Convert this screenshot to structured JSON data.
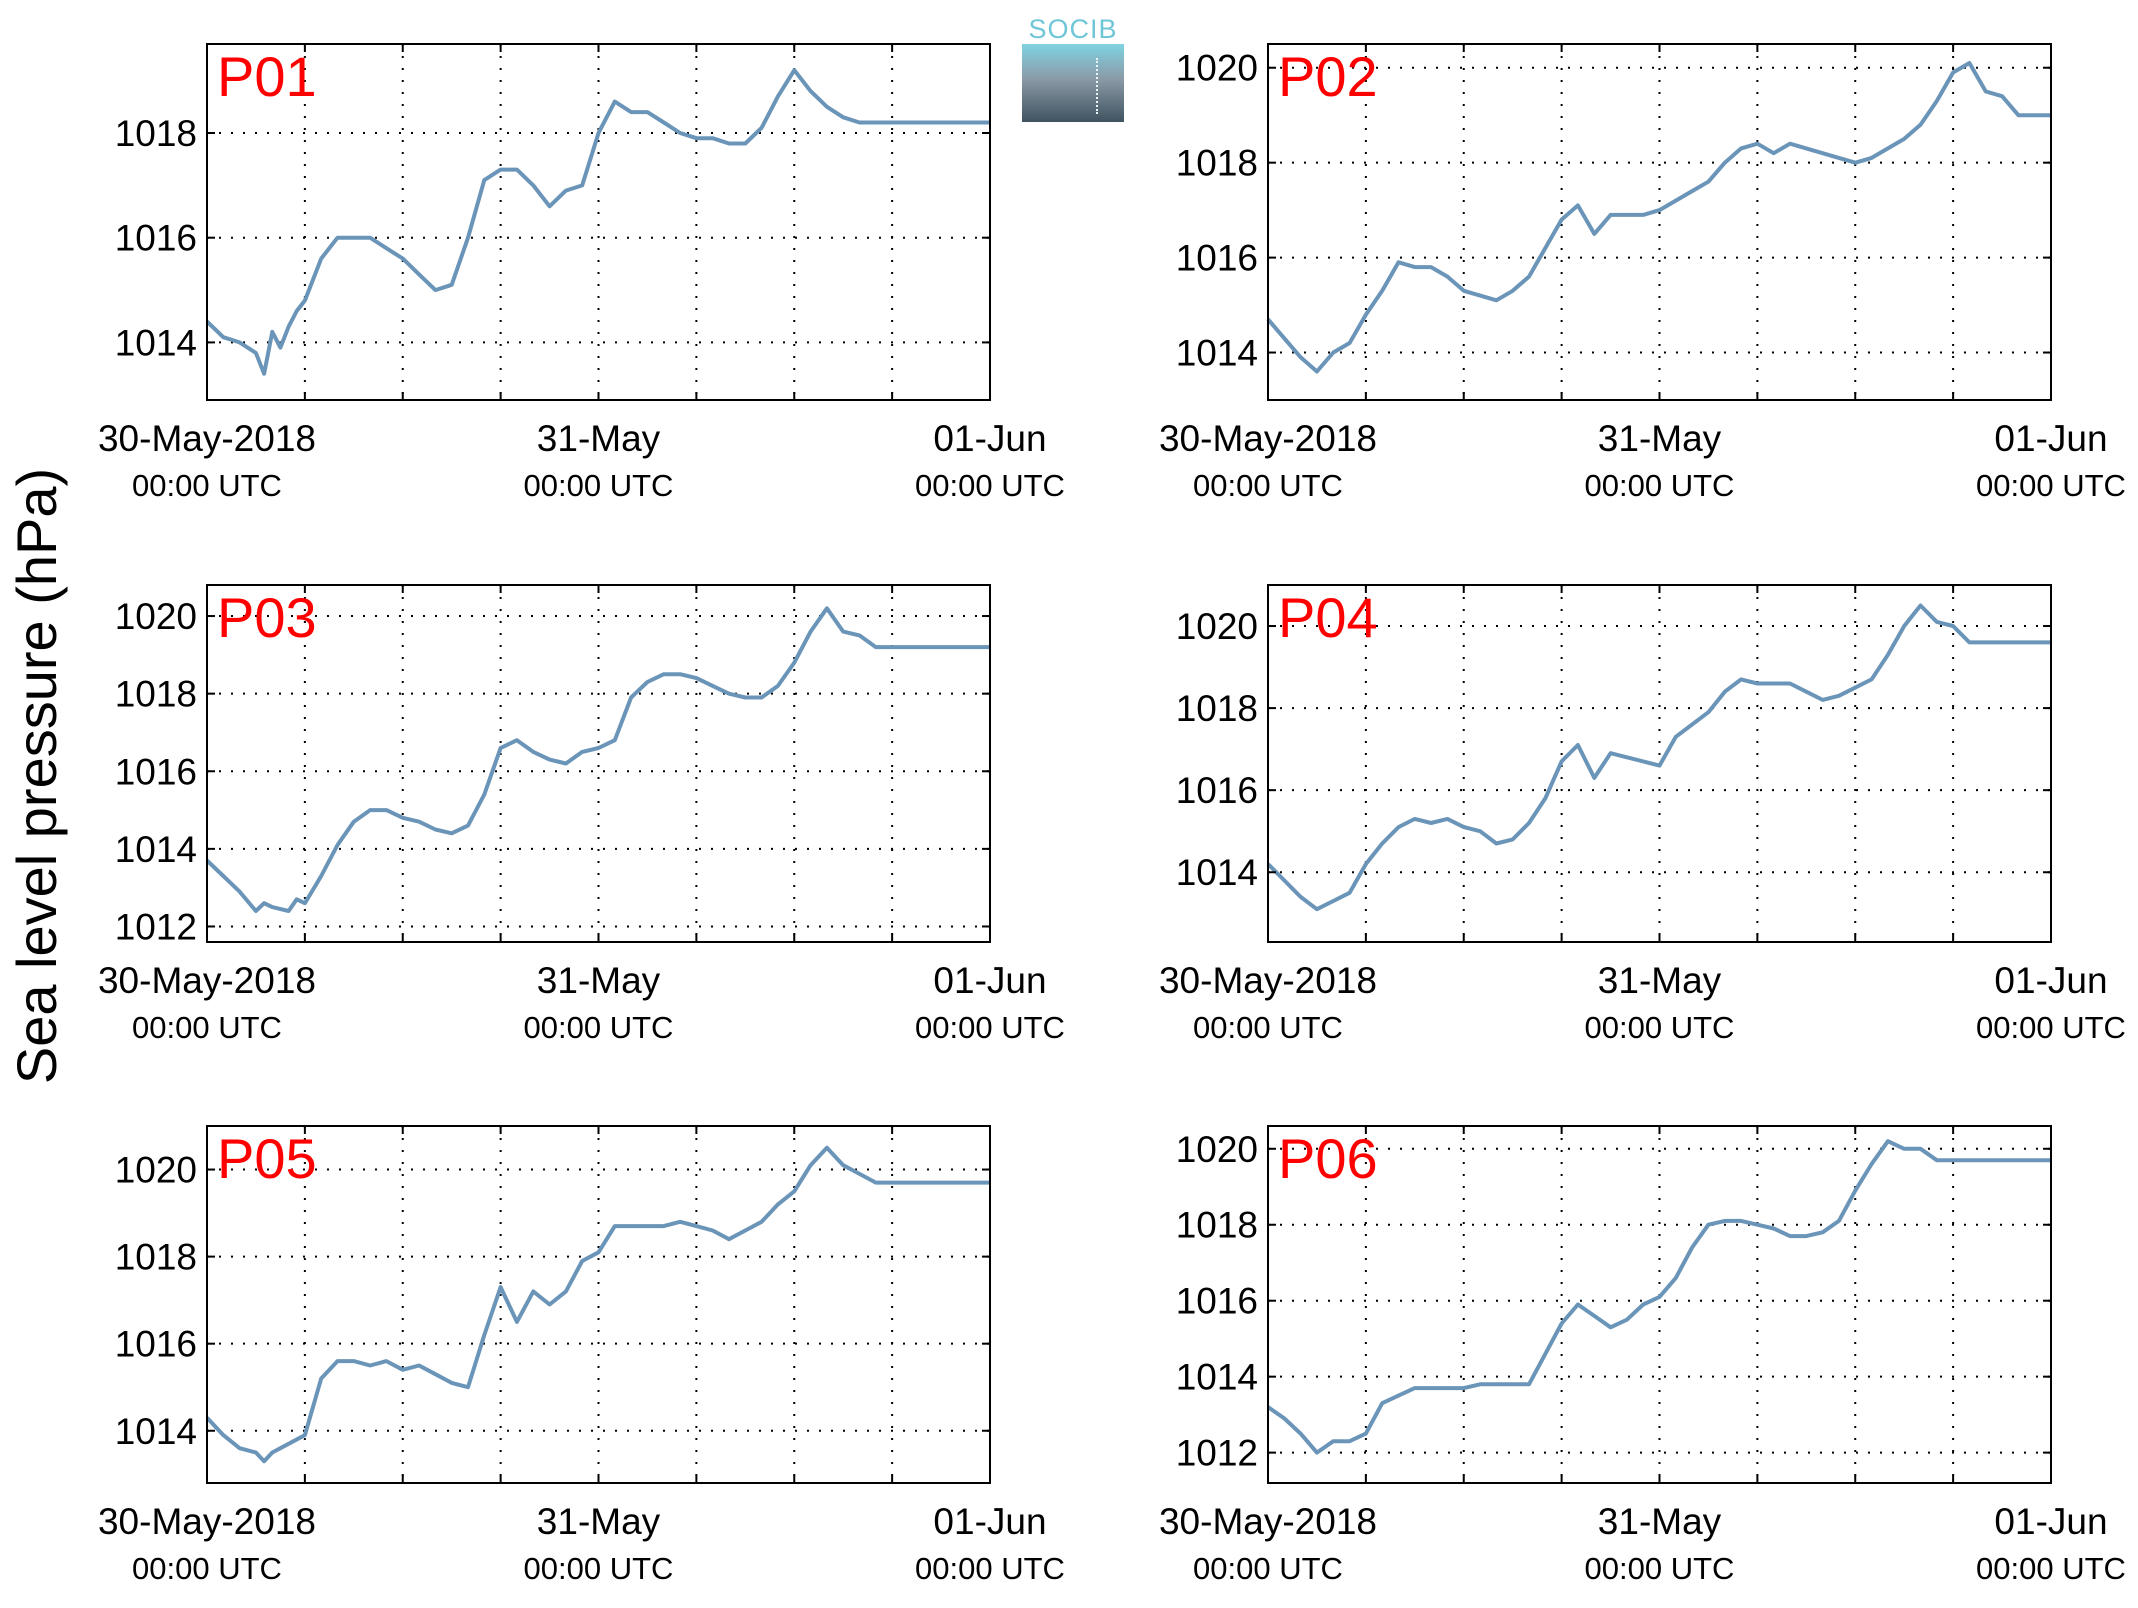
{
  "figure": {
    "ylabel": "Sea level pressure (hPa)",
    "logo_text": "SOCIB",
    "colors": {
      "line": "#6b95b8",
      "panel_label": "#ff0000",
      "axis": "#000000",
      "grid": "#000000"
    }
  },
  "chart_data": [
    {
      "type": "line",
      "title": "P01",
      "x_ticks": [
        "30-May-2018",
        "31-May",
        "01-Jun"
      ],
      "x_tick_sub": [
        "00:00 UTC",
        "00:00 UTC",
        "00:00 UTC"
      ],
      "x_range_hours": [
        0,
        48
      ],
      "ylim": [
        1012.9,
        1019.7
      ],
      "yticks": [
        1014,
        1016,
        1018
      ],
      "grid": true,
      "series": [
        {
          "x_hours": [
            0,
            1,
            2,
            3,
            3.5,
            4,
            4.5,
            5,
            5.5,
            6,
            7,
            8,
            9,
            10,
            11,
            12,
            13,
            14,
            15,
            16,
            17,
            18,
            19,
            20,
            21,
            22,
            23,
            24,
            25,
            26,
            27,
            28,
            29,
            30,
            31,
            32,
            33,
            34,
            35,
            36,
            37,
            38,
            39,
            40,
            41,
            42,
            43,
            44,
            45,
            46,
            47,
            48
          ],
          "values": [
            1014.4,
            1014.1,
            1014.0,
            1013.8,
            1013.4,
            1014.2,
            1013.9,
            1014.3,
            1014.6,
            1014.8,
            1015.6,
            1016.0,
            1016.0,
            1016.0,
            1015.8,
            1015.6,
            1015.3,
            1015.0,
            1015.1,
            1016.0,
            1017.1,
            1017.3,
            1017.3,
            1017.0,
            1016.6,
            1016.9,
            1017.0,
            1018.0,
            1018.6,
            1018.4,
            1018.4,
            1018.2,
            1018.0,
            1017.9,
            1017.9,
            1017.8,
            1017.8,
            1018.1,
            1018.7,
            1019.2,
            1018.8,
            1018.5,
            1018.3,
            1018.2,
            1018.2,
            1018.2,
            1018.2,
            1018.2,
            1018.2,
            1018.2,
            1018.2,
            1018.2
          ]
        }
      ]
    },
    {
      "type": "line",
      "title": "P02",
      "x_ticks": [
        "30-May-2018",
        "31-May",
        "01-Jun"
      ],
      "x_tick_sub": [
        "00:00 UTC",
        "00:00 UTC",
        "00:00 UTC"
      ],
      "x_range_hours": [
        0,
        48
      ],
      "ylim": [
        1013.0,
        1020.5
      ],
      "yticks": [
        1014,
        1016,
        1018,
        1020
      ],
      "grid": true,
      "series": [
        {
          "x_hours": [
            0,
            1,
            2,
            3,
            4,
            5,
            6,
            7,
            8,
            9,
            10,
            11,
            12,
            13,
            14,
            15,
            16,
            17,
            18,
            19,
            20,
            21,
            22,
            23,
            24,
            25,
            26,
            27,
            28,
            29,
            30,
            31,
            32,
            33,
            34,
            35,
            36,
            37,
            38,
            39,
            40,
            41,
            42,
            43,
            44,
            45,
            46,
            47,
            48
          ],
          "values": [
            1014.7,
            1014.3,
            1013.9,
            1013.6,
            1014.0,
            1014.2,
            1014.8,
            1015.3,
            1015.9,
            1015.8,
            1015.8,
            1015.6,
            1015.3,
            1015.2,
            1015.1,
            1015.3,
            1015.6,
            1016.2,
            1016.8,
            1017.1,
            1016.5,
            1016.9,
            1016.9,
            1016.9,
            1017.0,
            1017.2,
            1017.4,
            1017.6,
            1018.0,
            1018.3,
            1018.4,
            1018.2,
            1018.4,
            1018.3,
            1018.2,
            1018.1,
            1018.0,
            1018.1,
            1018.3,
            1018.5,
            1018.8,
            1019.3,
            1019.9,
            1020.1,
            1019.5,
            1019.4,
            1019.0,
            1019.0,
            1019.0
          ]
        }
      ]
    },
    {
      "type": "line",
      "title": "P03",
      "x_ticks": [
        "30-May-2018",
        "31-May",
        "01-Jun"
      ],
      "x_tick_sub": [
        "00:00 UTC",
        "00:00 UTC",
        "00:00 UTC"
      ],
      "x_range_hours": [
        0,
        48
      ],
      "ylim": [
        1011.6,
        1020.8
      ],
      "yticks": [
        1012,
        1014,
        1016,
        1018,
        1020
      ],
      "grid": true,
      "series": [
        {
          "x_hours": [
            0,
            1,
            2,
            3,
            3.5,
            4,
            5,
            5.5,
            6,
            7,
            8,
            9,
            10,
            11,
            12,
            13,
            14,
            15,
            16,
            17,
            18,
            19,
            20,
            21,
            22,
            23,
            24,
            25,
            26,
            27,
            28,
            29,
            30,
            31,
            32,
            33,
            34,
            35,
            36,
            37,
            38,
            39,
            40,
            41,
            42,
            43,
            44,
            45,
            46,
            47,
            48
          ],
          "values": [
            1013.7,
            1013.3,
            1012.9,
            1012.4,
            1012.6,
            1012.5,
            1012.4,
            1012.7,
            1012.6,
            1013.3,
            1014.1,
            1014.7,
            1015.0,
            1015.0,
            1014.8,
            1014.7,
            1014.5,
            1014.4,
            1014.6,
            1015.4,
            1016.6,
            1016.8,
            1016.5,
            1016.3,
            1016.2,
            1016.5,
            1016.6,
            1016.8,
            1017.9,
            1018.3,
            1018.5,
            1018.5,
            1018.4,
            1018.2,
            1018.0,
            1017.9,
            1017.9,
            1018.2,
            1018.8,
            1019.6,
            1020.2,
            1019.6,
            1019.5,
            1019.2,
            1019.2,
            1019.2,
            1019.2,
            1019.2,
            1019.2,
            1019.2,
            1019.2
          ]
        }
      ]
    },
    {
      "type": "line",
      "title": "P04",
      "x_ticks": [
        "30-May-2018",
        "31-May",
        "01-Jun"
      ],
      "x_tick_sub": [
        "00:00 UTC",
        "00:00 UTC",
        "00:00 UTC"
      ],
      "x_range_hours": [
        0,
        48
      ],
      "ylim": [
        1012.3,
        1021.0
      ],
      "yticks": [
        1014,
        1016,
        1018,
        1020
      ],
      "grid": true,
      "series": [
        {
          "x_hours": [
            0,
            1,
            2,
            3,
            4,
            5,
            6,
            7,
            8,
            9,
            10,
            11,
            12,
            13,
            14,
            15,
            16,
            17,
            18,
            19,
            20,
            21,
            22,
            23,
            24,
            25,
            26,
            27,
            28,
            29,
            30,
            31,
            32,
            33,
            34,
            35,
            36,
            37,
            38,
            39,
            40,
            41,
            42,
            43,
            44,
            45,
            46,
            47,
            48
          ],
          "values": [
            1014.2,
            1013.8,
            1013.4,
            1013.1,
            1013.3,
            1013.5,
            1014.2,
            1014.7,
            1015.1,
            1015.3,
            1015.2,
            1015.3,
            1015.1,
            1015.0,
            1014.7,
            1014.8,
            1015.2,
            1015.8,
            1016.7,
            1017.1,
            1016.3,
            1016.9,
            1016.8,
            1016.7,
            1016.6,
            1017.3,
            1017.6,
            1017.9,
            1018.4,
            1018.7,
            1018.6,
            1018.6,
            1018.6,
            1018.4,
            1018.2,
            1018.3,
            1018.5,
            1018.7,
            1019.3,
            1020.0,
            1020.5,
            1020.1,
            1020.0,
            1019.6,
            1019.6,
            1019.6,
            1019.6,
            1019.6,
            1019.6
          ]
        }
      ]
    },
    {
      "type": "line",
      "title": "P05",
      "x_ticks": [
        "30-May-2018",
        "31-May",
        "01-Jun"
      ],
      "x_tick_sub": [
        "00:00 UTC",
        "00:00 UTC",
        "00:00 UTC"
      ],
      "x_range_hours": [
        0,
        48
      ],
      "ylim": [
        1012.8,
        1021.0
      ],
      "yticks": [
        1014,
        1016,
        1018,
        1020
      ],
      "grid": true,
      "series": [
        {
          "x_hours": [
            0,
            1,
            2,
            3,
            3.5,
            4,
            5,
            6,
            7,
            8,
            9,
            10,
            11,
            12,
            13,
            14,
            15,
            16,
            17,
            18,
            19,
            20,
            21,
            22,
            23,
            24,
            25,
            26,
            27,
            28,
            29,
            30,
            31,
            32,
            33,
            34,
            35,
            36,
            37,
            38,
            39,
            40,
            41,
            42,
            43,
            44,
            45,
            46,
            47,
            48
          ],
          "values": [
            1014.3,
            1013.9,
            1013.6,
            1013.5,
            1013.3,
            1013.5,
            1013.7,
            1013.9,
            1015.2,
            1015.6,
            1015.6,
            1015.5,
            1015.6,
            1015.4,
            1015.5,
            1015.3,
            1015.1,
            1015.0,
            1016.2,
            1017.3,
            1016.5,
            1017.2,
            1016.9,
            1017.2,
            1017.9,
            1018.1,
            1018.7,
            1018.7,
            1018.7,
            1018.7,
            1018.8,
            1018.7,
            1018.6,
            1018.4,
            1018.6,
            1018.8,
            1019.2,
            1019.5,
            1020.1,
            1020.5,
            1020.1,
            1019.9,
            1019.7,
            1019.7,
            1019.7,
            1019.7,
            1019.7,
            1019.7,
            1019.7,
            1019.7
          ]
        }
      ]
    },
    {
      "type": "line",
      "title": "P06",
      "x_ticks": [
        "30-May-2018",
        "31-May",
        "01-Jun"
      ],
      "x_tick_sub": [
        "00:00 UTC",
        "00:00 UTC",
        "00:00 UTC"
      ],
      "x_range_hours": [
        0,
        48
      ],
      "ylim": [
        1011.2,
        1020.6
      ],
      "yticks": [
        1012,
        1014,
        1016,
        1018,
        1020
      ],
      "grid": true,
      "series": [
        {
          "x_hours": [
            0,
            1,
            2,
            3,
            4,
            5,
            6,
            7,
            8,
            9,
            10,
            11,
            12,
            13,
            14,
            15,
            16,
            17,
            18,
            19,
            20,
            21,
            22,
            23,
            24,
            25,
            26,
            27,
            28,
            29,
            30,
            31,
            32,
            33,
            34,
            35,
            36,
            37,
            38,
            39,
            40,
            41,
            42,
            43,
            44,
            45,
            46,
            47,
            48
          ],
          "values": [
            1013.2,
            1012.9,
            1012.5,
            1012.0,
            1012.3,
            1012.3,
            1012.5,
            1013.3,
            1013.5,
            1013.7,
            1013.7,
            1013.7,
            1013.7,
            1013.8,
            1013.8,
            1013.8,
            1013.8,
            1014.6,
            1015.4,
            1015.9,
            1015.6,
            1015.3,
            1015.5,
            1015.9,
            1016.1,
            1016.6,
            1017.4,
            1018.0,
            1018.1,
            1018.1,
            1018.0,
            1017.9,
            1017.7,
            1017.7,
            1017.8,
            1018.1,
            1018.9,
            1019.6,
            1020.2,
            1020.0,
            1020.0,
            1019.7,
            1019.7,
            1019.7,
            1019.7,
            1019.7,
            1019.7,
            1019.7,
            1019.7
          ]
        }
      ]
    }
  ]
}
